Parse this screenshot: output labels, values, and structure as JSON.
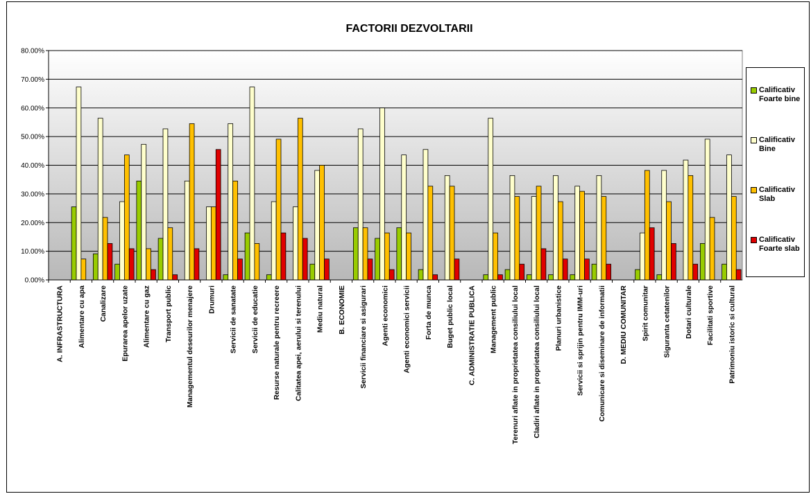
{
  "chart_data": {
    "type": "bar",
    "title": "FACTORII DEZVOLTARII",
    "categories": [
      "A. INFRASTRUCTURA",
      "Alimentare cu apa",
      "Canalizare",
      "Epurarea apelor uzate",
      "Alimentare cu gaz",
      "Transport public",
      "Managementul deseurilor menajere",
      "Drumuri",
      "Servicii de sanatate",
      "Servicii de educatie",
      "Resurse naturale pentru recreere",
      "Calitatea apei, aerului si terenului",
      "Mediu natural",
      "B. ECONOMIE",
      "Servicii financiare si asigurari",
      "Agenti economici",
      "Agenti economici servicii",
      "Forta de munca",
      "Buget public local",
      "C. ADMINISTRATIE PUBLICA",
      "Management public",
      "Terenuri aflate in proprietatea consiliului local",
      "Cladiri aflate in proprietatea consiliului local",
      "Planuri urbanistice",
      "Servicii si sprijin pentru IMM-uri",
      "Comunicare si diseminare de informatii",
      "D. MEDIU COMUNITAR",
      "Spirit comunitar",
      "Siguranta cetatenilor",
      "Dotari culturale",
      "Facilitati sportive",
      "Patrimoniu istoric si cultural"
    ],
    "series": [
      {
        "name": "Calificativ Foarte bine",
        "color": "#99cc00",
        "values": [
          0,
          25.5,
          9.1,
          5.5,
          34.5,
          14.5,
          0,
          0,
          1.8,
          16.4,
          1.8,
          0,
          5.5,
          0,
          18.2,
          14.5,
          18.2,
          3.6,
          0,
          0,
          1.8,
          3.6,
          1.8,
          1.8,
          1.8,
          5.5,
          0,
          3.6,
          1.8,
          0,
          12.7,
          5.5
        ]
      },
      {
        "name": "Calificativ Bine",
        "color": "#ffffcc",
        "values": [
          0,
          67.3,
          56.4,
          27.3,
          47.3,
          52.7,
          34.5,
          25.5,
          54.5,
          67.3,
          27.3,
          25.5,
          38.2,
          0,
          52.7,
          60.0,
          43.6,
          45.5,
          36.4,
          0,
          56.4,
          36.4,
          29.1,
          36.4,
          32.7,
          36.4,
          0,
          16.4,
          38.2,
          41.8,
          49.1,
          43.6
        ]
      },
      {
        "name": "Calificativ Slab",
        "color": "#ffc000",
        "values": [
          0,
          7.3,
          21.8,
          43.6,
          10.9,
          18.2,
          54.5,
          25.5,
          34.5,
          12.7,
          49.1,
          56.4,
          40.0,
          0,
          18.2,
          16.4,
          16.4,
          32.7,
          32.7,
          0,
          16.4,
          29.1,
          32.7,
          27.3,
          30.9,
          29.1,
          0,
          38.2,
          27.3,
          36.4,
          21.8,
          29.1
        ]
      },
      {
        "name": "Calificativ Foarte slab",
        "color": "#e00000",
        "values": [
          0,
          0,
          12.7,
          10.9,
          3.6,
          1.8,
          10.9,
          45.5,
          7.3,
          0,
          16.4,
          14.5,
          7.3,
          0,
          7.3,
          3.6,
          0,
          1.8,
          7.3,
          0,
          1.8,
          5.5,
          10.9,
          7.3,
          7.3,
          5.5,
          0,
          18.2,
          12.7,
          5.5,
          0,
          3.6
        ]
      }
    ],
    "ylim": [
      0,
      80
    ],
    "yticks": [
      {
        "value": 0,
        "label": "0.00%"
      },
      {
        "value": 10,
        "label": "10.00%"
      },
      {
        "value": 20,
        "label": "20.00%"
      },
      {
        "value": 30,
        "label": "30.00%"
      },
      {
        "value": 40,
        "label": "40.00%"
      },
      {
        "value": 50,
        "label": "50.00%"
      },
      {
        "value": 60,
        "label": "60.00%"
      },
      {
        "value": 70,
        "label": "70.00%"
      },
      {
        "value": 80,
        "label": "80.00%"
      }
    ],
    "grid": true,
    "legend": "right"
  }
}
